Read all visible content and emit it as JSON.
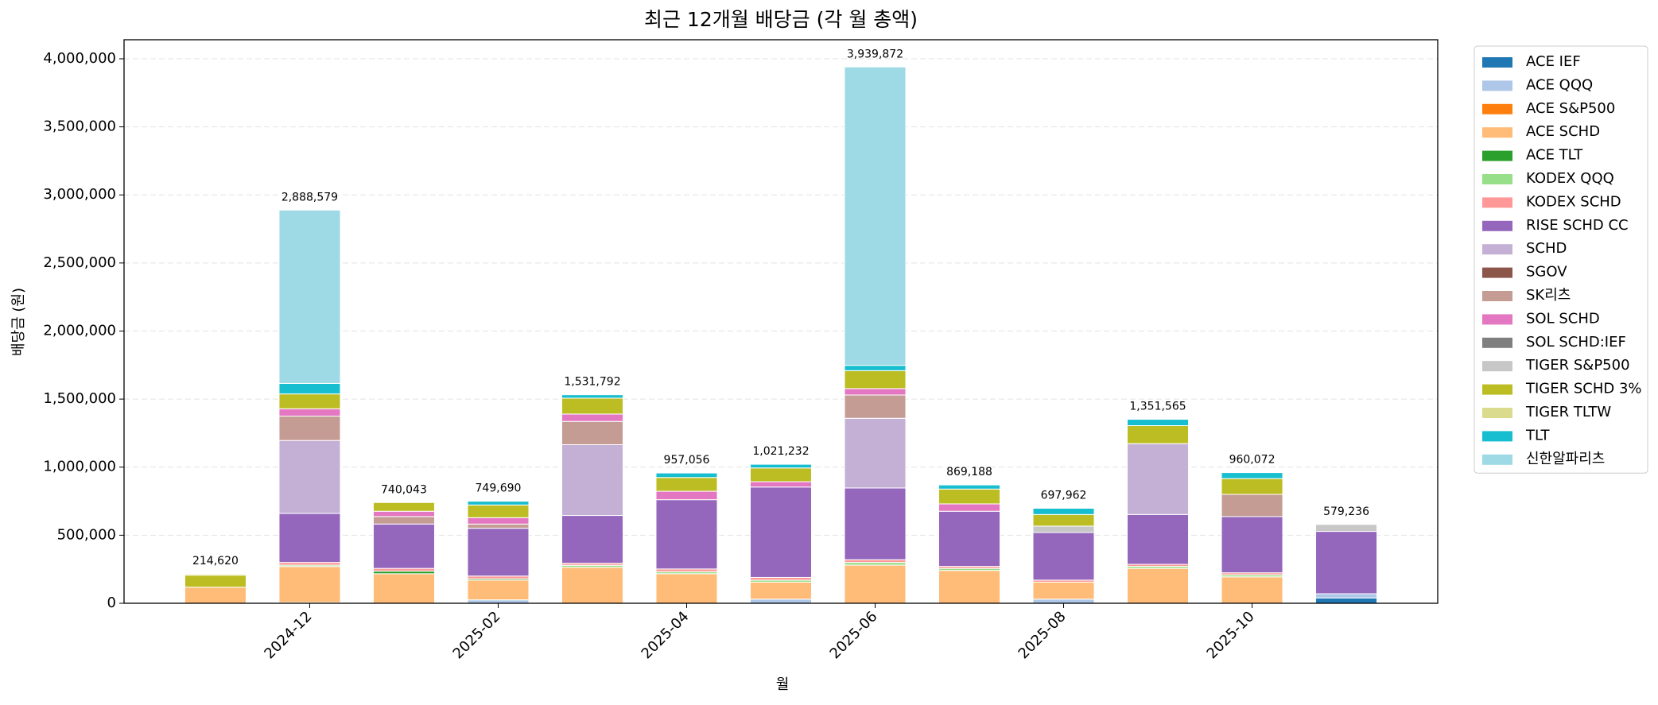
{
  "chart_data": {
    "type": "stacked_bar",
    "title": "최근 12개월 배당금 (각 월 총액)",
    "xlabel": "월",
    "ylabel": "배당금 (원)",
    "categories": [
      null,
      "2024-12",
      null,
      "2025-02",
      null,
      "2025-04",
      null,
      "2025-06",
      null,
      "2025-08",
      null,
      "2025-10",
      null
    ],
    "series": [
      {
        "name": "ACE IEF",
        "color": "#1f77b4",
        "values": [
          0,
          0,
          0,
          0,
          0,
          0,
          0,
          0,
          0,
          0,
          0,
          0,
          39000
        ]
      },
      {
        "name": "ACE QQQ",
        "color": "#aec7e8",
        "values": [
          0,
          5000,
          0,
          25000,
          0,
          0,
          30000,
          0,
          0,
          30000,
          0,
          0,
          31000
        ]
      },
      {
        "name": "ACE S&P500",
        "color": "#ff7f0e",
        "values": [
          0,
          0,
          0,
          0,
          0,
          0,
          0,
          0,
          0,
          0,
          0,
          0,
          0
        ]
      },
      {
        "name": "ACE SCHD",
        "color": "#ffbb78",
        "values": [
          118000,
          265000,
          217000,
          145000,
          264000,
          217000,
          125000,
          280000,
          241000,
          125000,
          256000,
          194000,
          0
        ]
      },
      {
        "name": "ACE TLT",
        "color": "#2ca02c",
        "values": [
          0,
          0,
          19000,
          10000,
          0,
          0,
          0,
          0,
          0,
          0,
          0,
          0,
          0
        ]
      },
      {
        "name": "KODEX QQQ",
        "color": "#98df8a",
        "values": [
          0,
          10000,
          0,
          0,
          15000,
          15000,
          15000,
          20000,
          15000,
          0,
          15000,
          15000,
          0
        ]
      },
      {
        "name": "KODEX SCHD",
        "color": "#ff9896",
        "values": [
          0,
          20000,
          20000,
          20000,
          15000,
          20000,
          20000,
          20000,
          15000,
          15000,
          15000,
          15000,
          0
        ]
      },
      {
        "name": "RISE SCHD CC",
        "color": "#9467bd",
        "values": [
          0,
          360000,
          326000,
          351000,
          351000,
          509000,
          664000,
          527000,
          405000,
          350000,
          366000,
          413000,
          458000
        ]
      },
      {
        "name": "SCHD",
        "color": "#c5b0d5",
        "values": [
          0,
          536000,
          0,
          0,
          520000,
          0,
          0,
          512000,
          0,
          0,
          521000,
          0,
          0
        ]
      },
      {
        "name": "SGOV",
        "color": "#8c564b",
        "values": [
          0,
          0,
          0,
          0,
          0,
          0,
          0,
          0,
          0,
          0,
          0,
          0,
          0
        ]
      },
      {
        "name": "SK리츠",
        "color": "#c49c94",
        "values": [
          0,
          179000,
          55000,
          31000,
          171000,
          0,
          0,
          171000,
          0,
          0,
          0,
          163000,
          0
        ]
      },
      {
        "name": "SOL SCHD",
        "color": "#e377c2",
        "values": [
          0,
          54000,
          39000,
          47000,
          54000,
          62000,
          39000,
          47000,
          54000,
          0,
          0,
          0,
          0
        ]
      },
      {
        "name": "SOL SCHD:IEF",
        "color": "#7f7f7f",
        "values": [
          0,
          0,
          0,
          0,
          0,
          0,
          0,
          0,
          0,
          0,
          0,
          0,
          0
        ]
      },
      {
        "name": "TIGER S&P500",
        "color": "#c7c7c7",
        "values": [
          0,
          0,
          0,
          0,
          0,
          0,
          0,
          0,
          0,
          47000,
          0,
          0,
          51236
        ]
      },
      {
        "name": "TIGER SCHD 3%",
        "color": "#bcbd22",
        "values": [
          88620,
          109000,
          64043,
          93000,
          117000,
          101000,
          101000,
          132000,
          109000,
          85000,
          132000,
          116000,
          0
        ]
      },
      {
        "name": "TIGER TLTW",
        "color": "#dbdb8d",
        "values": [
          8000,
          0,
          0,
          0,
          0,
          0,
          0,
          0,
          0,
          0,
          0,
          0,
          0
        ]
      },
      {
        "name": "TLT",
        "color": "#17becf",
        "values": [
          0,
          77000,
          0,
          27690,
          24792,
          33056,
          27232,
          39000,
          30188,
          45962,
          46565,
          44072,
          0
        ]
      },
      {
        "name": "신한알파리츠",
        "color": "#9edae5",
        "values": [
          0,
          1273579,
          0,
          0,
          0,
          0,
          0,
          2191872,
          0,
          0,
          0,
          0,
          0
        ]
      }
    ],
    "totals": [
      214620,
      2888579,
      740043,
      749690,
      1531792,
      957056,
      1021232,
      3939872,
      869188,
      697962,
      1351565,
      960072,
      579236
    ],
    "total_labels": [
      "214,620",
      "2,888,579",
      "740,043",
      "749,690",
      "1,531,792",
      "957,056",
      "1,021,232",
      "3,939,872",
      "869,188",
      "697,962",
      "1,351,565",
      "960,072",
      "579,236"
    ],
    "ylim": [
      0,
      4140000
    ],
    "yticks": [
      0,
      {
        "value": 500000,
        "label": "500,000"
      },
      {
        "value": 1000000,
        "label": "1,000,000"
      },
      {
        "value": 1500000,
        "label": "1,500,000"
      },
      {
        "value": 2000000,
        "label": "2,000,000"
      },
      {
        "value": 2500000,
        "label": "2,500,000"
      },
      {
        "value": 3000000,
        "label": "3,000,000"
      },
      {
        "value": 3500000,
        "label": "3,500,000"
      },
      {
        "value": 4000000,
        "label": "4,000,000"
      }
    ],
    "grid": true,
    "legend": "outside-right"
  }
}
